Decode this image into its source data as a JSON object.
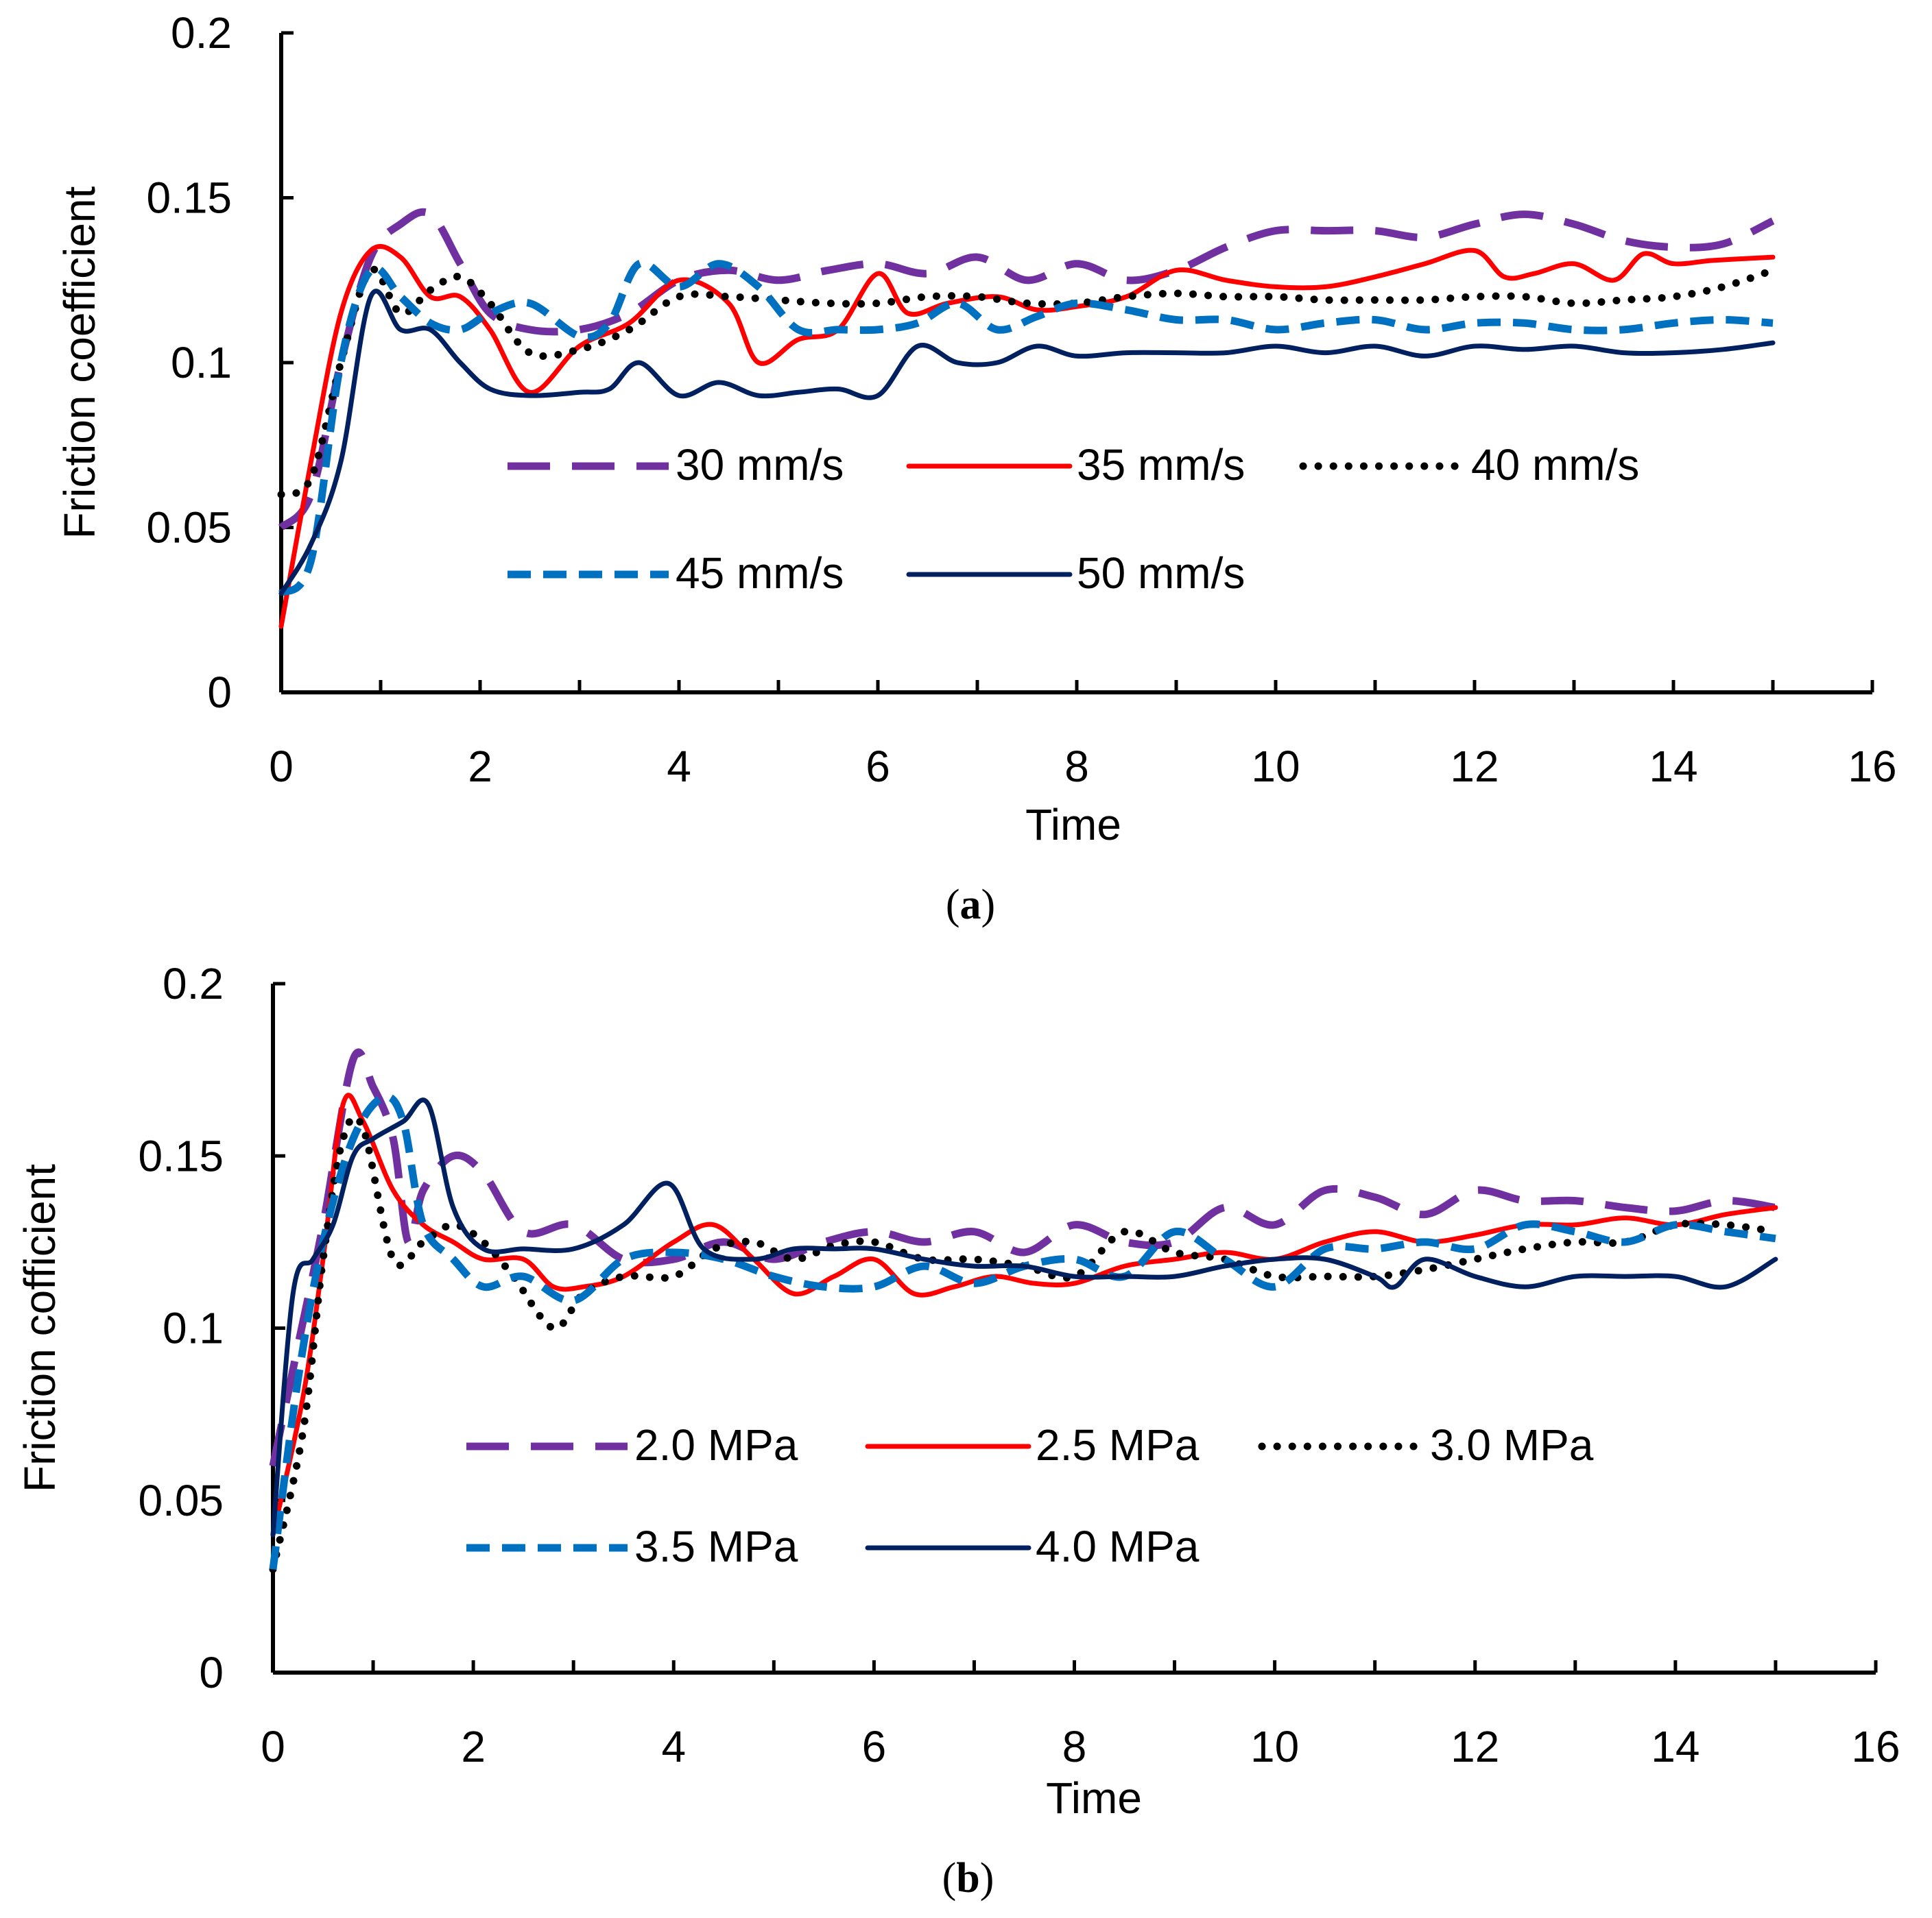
{
  "chart_data": [
    {
      "type": "line",
      "panel": "a",
      "caption_letter": "a",
      "xlabel": "Time",
      "ylabel": "Friction coefficient",
      "xlim": [
        0,
        16
      ],
      "ylim": [
        0,
        0.2
      ],
      "xticks": [
        "0",
        "2",
        "4",
        "6",
        "8",
        "10",
        "12",
        "14",
        "16"
      ],
      "yticks": [
        "0",
        "0.05",
        "0.1",
        "0.15",
        "0.2"
      ],
      "series": [
        {
          "name": "30 mm/s",
          "color": "#7030a0",
          "style": "longdash",
          "x": [
            0,
            0.3,
            0.6,
            0.9,
            1.2,
            1.5,
            1.8,
            2.1,
            2.5,
            3.0,
            3.5,
            4.0,
            4.5,
            5.0,
            5.5,
            6.0,
            6.5,
            7.0,
            7.5,
            8.0,
            8.5,
            9.0,
            9.5,
            10.0,
            10.5,
            11.0,
            11.5,
            12.0,
            12.5,
            13.0,
            13.5,
            14.0,
            14.5,
            15.0
          ],
          "y": [
            0.05,
            0.06,
            0.1,
            0.132,
            0.142,
            0.145,
            0.13,
            0.115,
            0.11,
            0.11,
            0.115,
            0.125,
            0.128,
            0.125,
            0.128,
            0.13,
            0.127,
            0.132,
            0.125,
            0.13,
            0.125,
            0.128,
            0.135,
            0.14,
            0.14,
            0.14,
            0.138,
            0.142,
            0.145,
            0.142,
            0.137,
            0.135,
            0.136,
            0.143
          ]
        },
        {
          "name": "35 mm/s",
          "color": "#ff0000",
          "style": "solid",
          "x": [
            0,
            0.3,
            0.6,
            0.9,
            1.2,
            1.5,
            1.8,
            2.1,
            2.5,
            3.0,
            3.5,
            4.0,
            4.5,
            4.8,
            5.2,
            5.6,
            6.0,
            6.3,
            6.7,
            7.2,
            7.6,
            8.0,
            8.5,
            9.0,
            9.5,
            10.0,
            10.5,
            11.0,
            11.5,
            12.0,
            12.3,
            12.6,
            13.0,
            13.4,
            13.7,
            14.0,
            14.4,
            15.0
          ],
          "y": [
            0.02,
            0.07,
            0.115,
            0.134,
            0.132,
            0.12,
            0.12,
            0.11,
            0.091,
            0.105,
            0.112,
            0.125,
            0.118,
            0.1,
            0.107,
            0.11,
            0.127,
            0.115,
            0.118,
            0.12,
            0.116,
            0.117,
            0.12,
            0.128,
            0.125,
            0.123,
            0.123,
            0.126,
            0.13,
            0.134,
            0.126,
            0.127,
            0.13,
            0.125,
            0.133,
            0.13,
            0.131,
            0.132
          ]
        },
        {
          "name": "40 mm/s",
          "color": "#000000",
          "style": "dotted",
          "x": [
            0,
            0.3,
            0.6,
            0.9,
            1.2,
            1.5,
            1.8,
            2.1,
            2.5,
            3.0,
            3.5,
            4.0,
            4.5,
            5.0,
            5.5,
            6.0,
            6.5,
            7.0,
            7.5,
            8.0,
            8.5,
            9.0,
            9.5,
            10.0,
            10.5,
            11.0,
            11.5,
            12.0,
            12.5,
            13.0,
            13.5,
            14.0,
            14.5,
            15.0
          ],
          "y": [
            0.06,
            0.065,
            0.1,
            0.128,
            0.115,
            0.122,
            0.126,
            0.118,
            0.103,
            0.104,
            0.11,
            0.12,
            0.12,
            0.119,
            0.118,
            0.118,
            0.12,
            0.12,
            0.118,
            0.118,
            0.12,
            0.121,
            0.12,
            0.12,
            0.119,
            0.119,
            0.119,
            0.12,
            0.12,
            0.118,
            0.119,
            0.12,
            0.123,
            0.128
          ]
        },
        {
          "name": "45 mm/s",
          "color": "#0070c0",
          "style": "dash",
          "x": [
            0,
            0.3,
            0.6,
            0.9,
            1.2,
            1.5,
            1.8,
            2.1,
            2.5,
            3.0,
            3.3,
            3.6,
            4.0,
            4.4,
            4.8,
            5.2,
            5.6,
            6.0,
            6.4,
            6.8,
            7.2,
            7.6,
            8.0,
            8.5,
            9.0,
            9.5,
            10.0,
            10.5,
            11.0,
            11.5,
            12.0,
            12.5,
            13.0,
            13.5,
            14.0,
            14.5,
            15.0
          ],
          "y": [
            0.03,
            0.04,
            0.1,
            0.128,
            0.12,
            0.112,
            0.11,
            0.115,
            0.118,
            0.108,
            0.112,
            0.13,
            0.123,
            0.13,
            0.123,
            0.11,
            0.11,
            0.11,
            0.112,
            0.118,
            0.11,
            0.114,
            0.118,
            0.116,
            0.113,
            0.113,
            0.11,
            0.112,
            0.113,
            0.11,
            0.112,
            0.112,
            0.11,
            0.11,
            0.112,
            0.113,
            0.112
          ]
        },
        {
          "name": "50 mm/s",
          "color": "#002060",
          "style": "solid",
          "x": [
            0,
            0.3,
            0.6,
            0.9,
            1.2,
            1.5,
            1.8,
            2.1,
            2.5,
            3.0,
            3.3,
            3.6,
            4.0,
            4.4,
            4.8,
            5.2,
            5.6,
            6.0,
            6.4,
            6.8,
            7.2,
            7.6,
            8.0,
            8.5,
            9.0,
            9.5,
            10.0,
            10.5,
            11.0,
            11.5,
            12.0,
            12.5,
            13.0,
            13.5,
            14.0,
            14.5,
            15.0
          ],
          "y": [
            0.03,
            0.045,
            0.07,
            0.12,
            0.11,
            0.11,
            0.1,
            0.092,
            0.09,
            0.091,
            0.092,
            0.1,
            0.09,
            0.094,
            0.09,
            0.091,
            0.092,
            0.09,
            0.105,
            0.1,
            0.1,
            0.105,
            0.102,
            0.103,
            0.103,
            0.103,
            0.105,
            0.103,
            0.105,
            0.102,
            0.105,
            0.104,
            0.105,
            0.103,
            0.103,
            0.104,
            0.106
          ]
        }
      ]
    },
    {
      "type": "line",
      "panel": "b",
      "caption_letter": "b",
      "xlabel": "Time",
      "ylabel": "Friction cofficient",
      "xlim": [
        0,
        16
      ],
      "ylim": [
        0,
        0.2
      ],
      "xticks": [
        "0",
        "2",
        "4",
        "6",
        "8",
        "10",
        "12",
        "14",
        "16"
      ],
      "yticks": [
        "0",
        "0.05",
        "0.1",
        "0.15",
        "0.2"
      ],
      "series": [
        {
          "name": "2.0 MPa",
          "color": "#7030a0",
          "style": "longdash",
          "x": [
            0,
            0.25,
            0.5,
            0.8,
            1.0,
            1.2,
            1.35,
            1.5,
            1.8,
            2.1,
            2.5,
            3.0,
            3.5,
            4.0,
            4.5,
            5.0,
            5.5,
            6.0,
            6.5,
            7.0,
            7.5,
            8.0,
            8.5,
            9.0,
            9.5,
            10.0,
            10.5,
            11.0,
            11.5,
            12.0,
            12.5,
            13.0,
            13.5,
            14.0,
            14.5,
            15.0
          ],
          "y": [
            0.06,
            0.095,
            0.13,
            0.178,
            0.17,
            0.155,
            0.125,
            0.14,
            0.15,
            0.145,
            0.128,
            0.13,
            0.12,
            0.12,
            0.125,
            0.12,
            0.125,
            0.128,
            0.125,
            0.128,
            0.122,
            0.13,
            0.125,
            0.125,
            0.135,
            0.13,
            0.14,
            0.138,
            0.133,
            0.14,
            0.137,
            0.137,
            0.135,
            0.134,
            0.137,
            0.135
          ]
        },
        {
          "name": "2.5 MPa",
          "color": "#ff0000",
          "style": "solid",
          "x": [
            0,
            0.3,
            0.5,
            0.7,
            0.9,
            1.2,
            1.5,
            1.8,
            2.1,
            2.5,
            2.8,
            3.1,
            3.5,
            4.0,
            4.4,
            4.8,
            5.2,
            5.6,
            6.0,
            6.4,
            6.8,
            7.2,
            7.6,
            8.0,
            8.5,
            9.0,
            9.5,
            10.0,
            10.5,
            11.0,
            11.5,
            12.0,
            12.5,
            13.0,
            13.5,
            14.0,
            14.5,
            15.0
          ],
          "y": [
            0.04,
            0.08,
            0.12,
            0.165,
            0.16,
            0.14,
            0.13,
            0.125,
            0.12,
            0.12,
            0.112,
            0.112,
            0.115,
            0.125,
            0.13,
            0.12,
            0.11,
            0.115,
            0.12,
            0.11,
            0.112,
            0.115,
            0.113,
            0.113,
            0.118,
            0.12,
            0.122,
            0.12,
            0.125,
            0.128,
            0.125,
            0.127,
            0.13,
            0.13,
            0.132,
            0.13,
            0.133,
            0.135
          ]
        },
        {
          "name": "3.0 MPa",
          "color": "#000000",
          "style": "dotted",
          "x": [
            0,
            0.3,
            0.5,
            0.7,
            0.9,
            1.2,
            1.5,
            1.8,
            2.1,
            2.4,
            2.8,
            3.1,
            3.5,
            4.0,
            4.4,
            4.8,
            5.2,
            5.6,
            6.0,
            6.5,
            7.0,
            7.5,
            8.0,
            8.5,
            9.0,
            9.5,
            10.0,
            10.5,
            11.0,
            11.5,
            12.0,
            12.5,
            13.0,
            13.5,
            14.0,
            14.5,
            15.0
          ],
          "y": [
            0.03,
            0.07,
            0.12,
            0.155,
            0.158,
            0.12,
            0.125,
            0.13,
            0.125,
            0.115,
            0.1,
            0.11,
            0.115,
            0.115,
            0.123,
            0.125,
            0.12,
            0.124,
            0.125,
            0.12,
            0.12,
            0.118,
            0.115,
            0.128,
            0.122,
            0.12,
            0.115,
            0.115,
            0.115,
            0.117,
            0.12,
            0.123,
            0.125,
            0.125,
            0.13,
            0.13,
            0.128
          ]
        },
        {
          "name": "3.5 MPa",
          "color": "#0070c0",
          "style": "dash",
          "x": [
            0,
            0.25,
            0.5,
            0.8,
            1.1,
            1.3,
            1.5,
            1.8,
            2.1,
            2.5,
            3.0,
            3.5,
            4.0,
            4.5,
            5.0,
            5.5,
            6.0,
            6.5,
            7.0,
            7.5,
            8.0,
            8.5,
            9.0,
            9.5,
            10.0,
            10.5,
            11.0,
            11.5,
            12.0,
            12.5,
            13.0,
            13.5,
            14.0,
            14.5,
            15.0
          ],
          "y": [
            0.03,
            0.085,
            0.125,
            0.155,
            0.167,
            0.16,
            0.13,
            0.12,
            0.112,
            0.115,
            0.108,
            0.12,
            0.122,
            0.12,
            0.115,
            0.112,
            0.112,
            0.118,
            0.113,
            0.118,
            0.12,
            0.115,
            0.128,
            0.12,
            0.112,
            0.123,
            0.123,
            0.125,
            0.123,
            0.13,
            0.128,
            0.125,
            0.13,
            0.128,
            0.126
          ]
        },
        {
          "name": "4.0 MPa",
          "color": "#002060",
          "style": "solid",
          "x": [
            0,
            0.2,
            0.4,
            0.6,
            0.8,
            1.0,
            1.3,
            1.55,
            1.8,
            2.1,
            2.5,
            3.0,
            3.5,
            3.95,
            4.3,
            4.8,
            5.2,
            5.6,
            6.0,
            6.5,
            7.0,
            7.5,
            8.0,
            8.5,
            9.0,
            9.5,
            10.0,
            10.5,
            11.0,
            11.2,
            11.5,
            12.0,
            12.5,
            13.0,
            13.5,
            14.0,
            14.5,
            15.0
          ],
          "y": [
            0.04,
            0.11,
            0.12,
            0.13,
            0.15,
            0.155,
            0.16,
            0.165,
            0.135,
            0.123,
            0.123,
            0.123,
            0.13,
            0.142,
            0.123,
            0.12,
            0.123,
            0.123,
            0.123,
            0.12,
            0.118,
            0.118,
            0.115,
            0.115,
            0.115,
            0.118,
            0.12,
            0.12,
            0.115,
            0.112,
            0.12,
            0.115,
            0.112,
            0.115,
            0.115,
            0.115,
            0.112,
            0.12
          ]
        }
      ]
    }
  ]
}
